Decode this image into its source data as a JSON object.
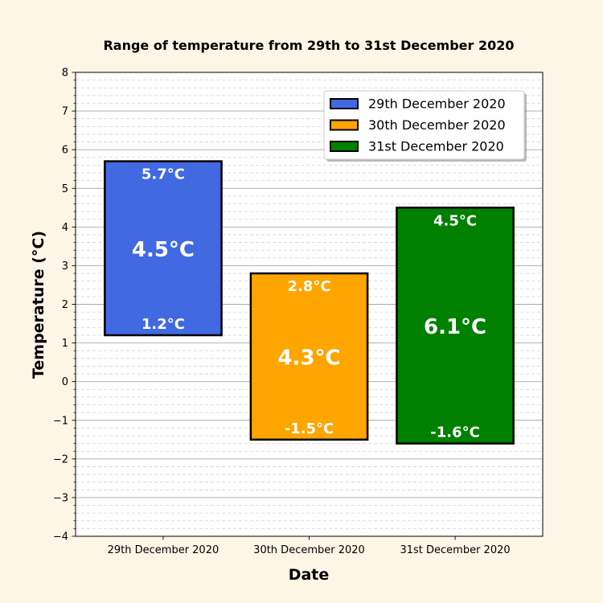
{
  "chart_data": {
    "type": "bar",
    "title": "Range of temperature from 29th to 31st December 2020",
    "xlabel": "Date",
    "ylabel": "Temperature (°C)",
    "ylim": [
      -4,
      8
    ],
    "yticks": [
      -4,
      -3,
      -2,
      -1,
      0,
      1,
      2,
      3,
      4,
      5,
      6,
      7,
      8
    ],
    "ytick_labels": [
      "−4",
      "−3",
      "−2",
      "−1",
      "0",
      "1",
      "2",
      "3",
      "4",
      "5",
      "6",
      "7",
      "8"
    ],
    "y_minor_step": 0.2,
    "grid": true,
    "legend_position": "top-right",
    "categories": [
      "29th December 2020",
      "30th December 2020",
      "31st December 2020"
    ],
    "series": [
      {
        "name": "29th December 2020",
        "low": 1.2,
        "high": 5.7,
        "range": 4.5,
        "low_label": "1.2°C",
        "high_label": "5.7°C",
        "range_label": "4.5°C",
        "color": "#4169e1"
      },
      {
        "name": "30th December 2020",
        "low": -1.5,
        "high": 2.8,
        "range": 4.3,
        "low_label": "-1.5°C",
        "high_label": "2.8°C",
        "range_label": "4.3°C",
        "color": "#ffa500"
      },
      {
        "name": "31st December 2020",
        "low": -1.6,
        "high": 4.5,
        "range": 6.1,
        "low_label": "-1.6°C",
        "high_label": "4.5°C",
        "range_label": "6.1°C",
        "color": "#008000"
      }
    ]
  }
}
